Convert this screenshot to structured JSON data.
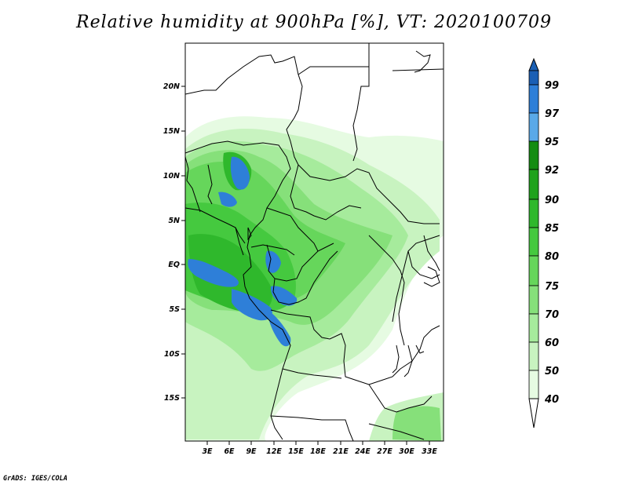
{
  "title": "Relative humidity at 900hPa [%], VT: 2020100709",
  "credit": "GrADS: IGES/COLA",
  "map": {
    "lon_range": [
      0,
      34
    ],
    "lat_range": [
      -20,
      25
    ],
    "lat_ticks": [
      "20N",
      "15N",
      "10N",
      "5N",
      "EQ",
      "5S",
      "10S",
      "15S"
    ],
    "lon_ticks": [
      "3E",
      "6E",
      "9E",
      "12E",
      "15E",
      "18E",
      "21E",
      "24E",
      "27E",
      "30E",
      "33E"
    ]
  },
  "colorbar": {
    "labels": [
      "99",
      "97",
      "95",
      "92",
      "90",
      "85",
      "80",
      "75",
      "70",
      "60",
      "50",
      "40"
    ],
    "colors": [
      "#ffffff",
      "#e6fbe2",
      "#c8f3c0",
      "#a6eb9c",
      "#86e07a",
      "#66d65b",
      "#45c93f",
      "#2fb82c",
      "#1fa21c",
      "#148c12",
      "#5aa9e8",
      "#2e7fd8",
      "#1a5fb4"
    ]
  }
}
